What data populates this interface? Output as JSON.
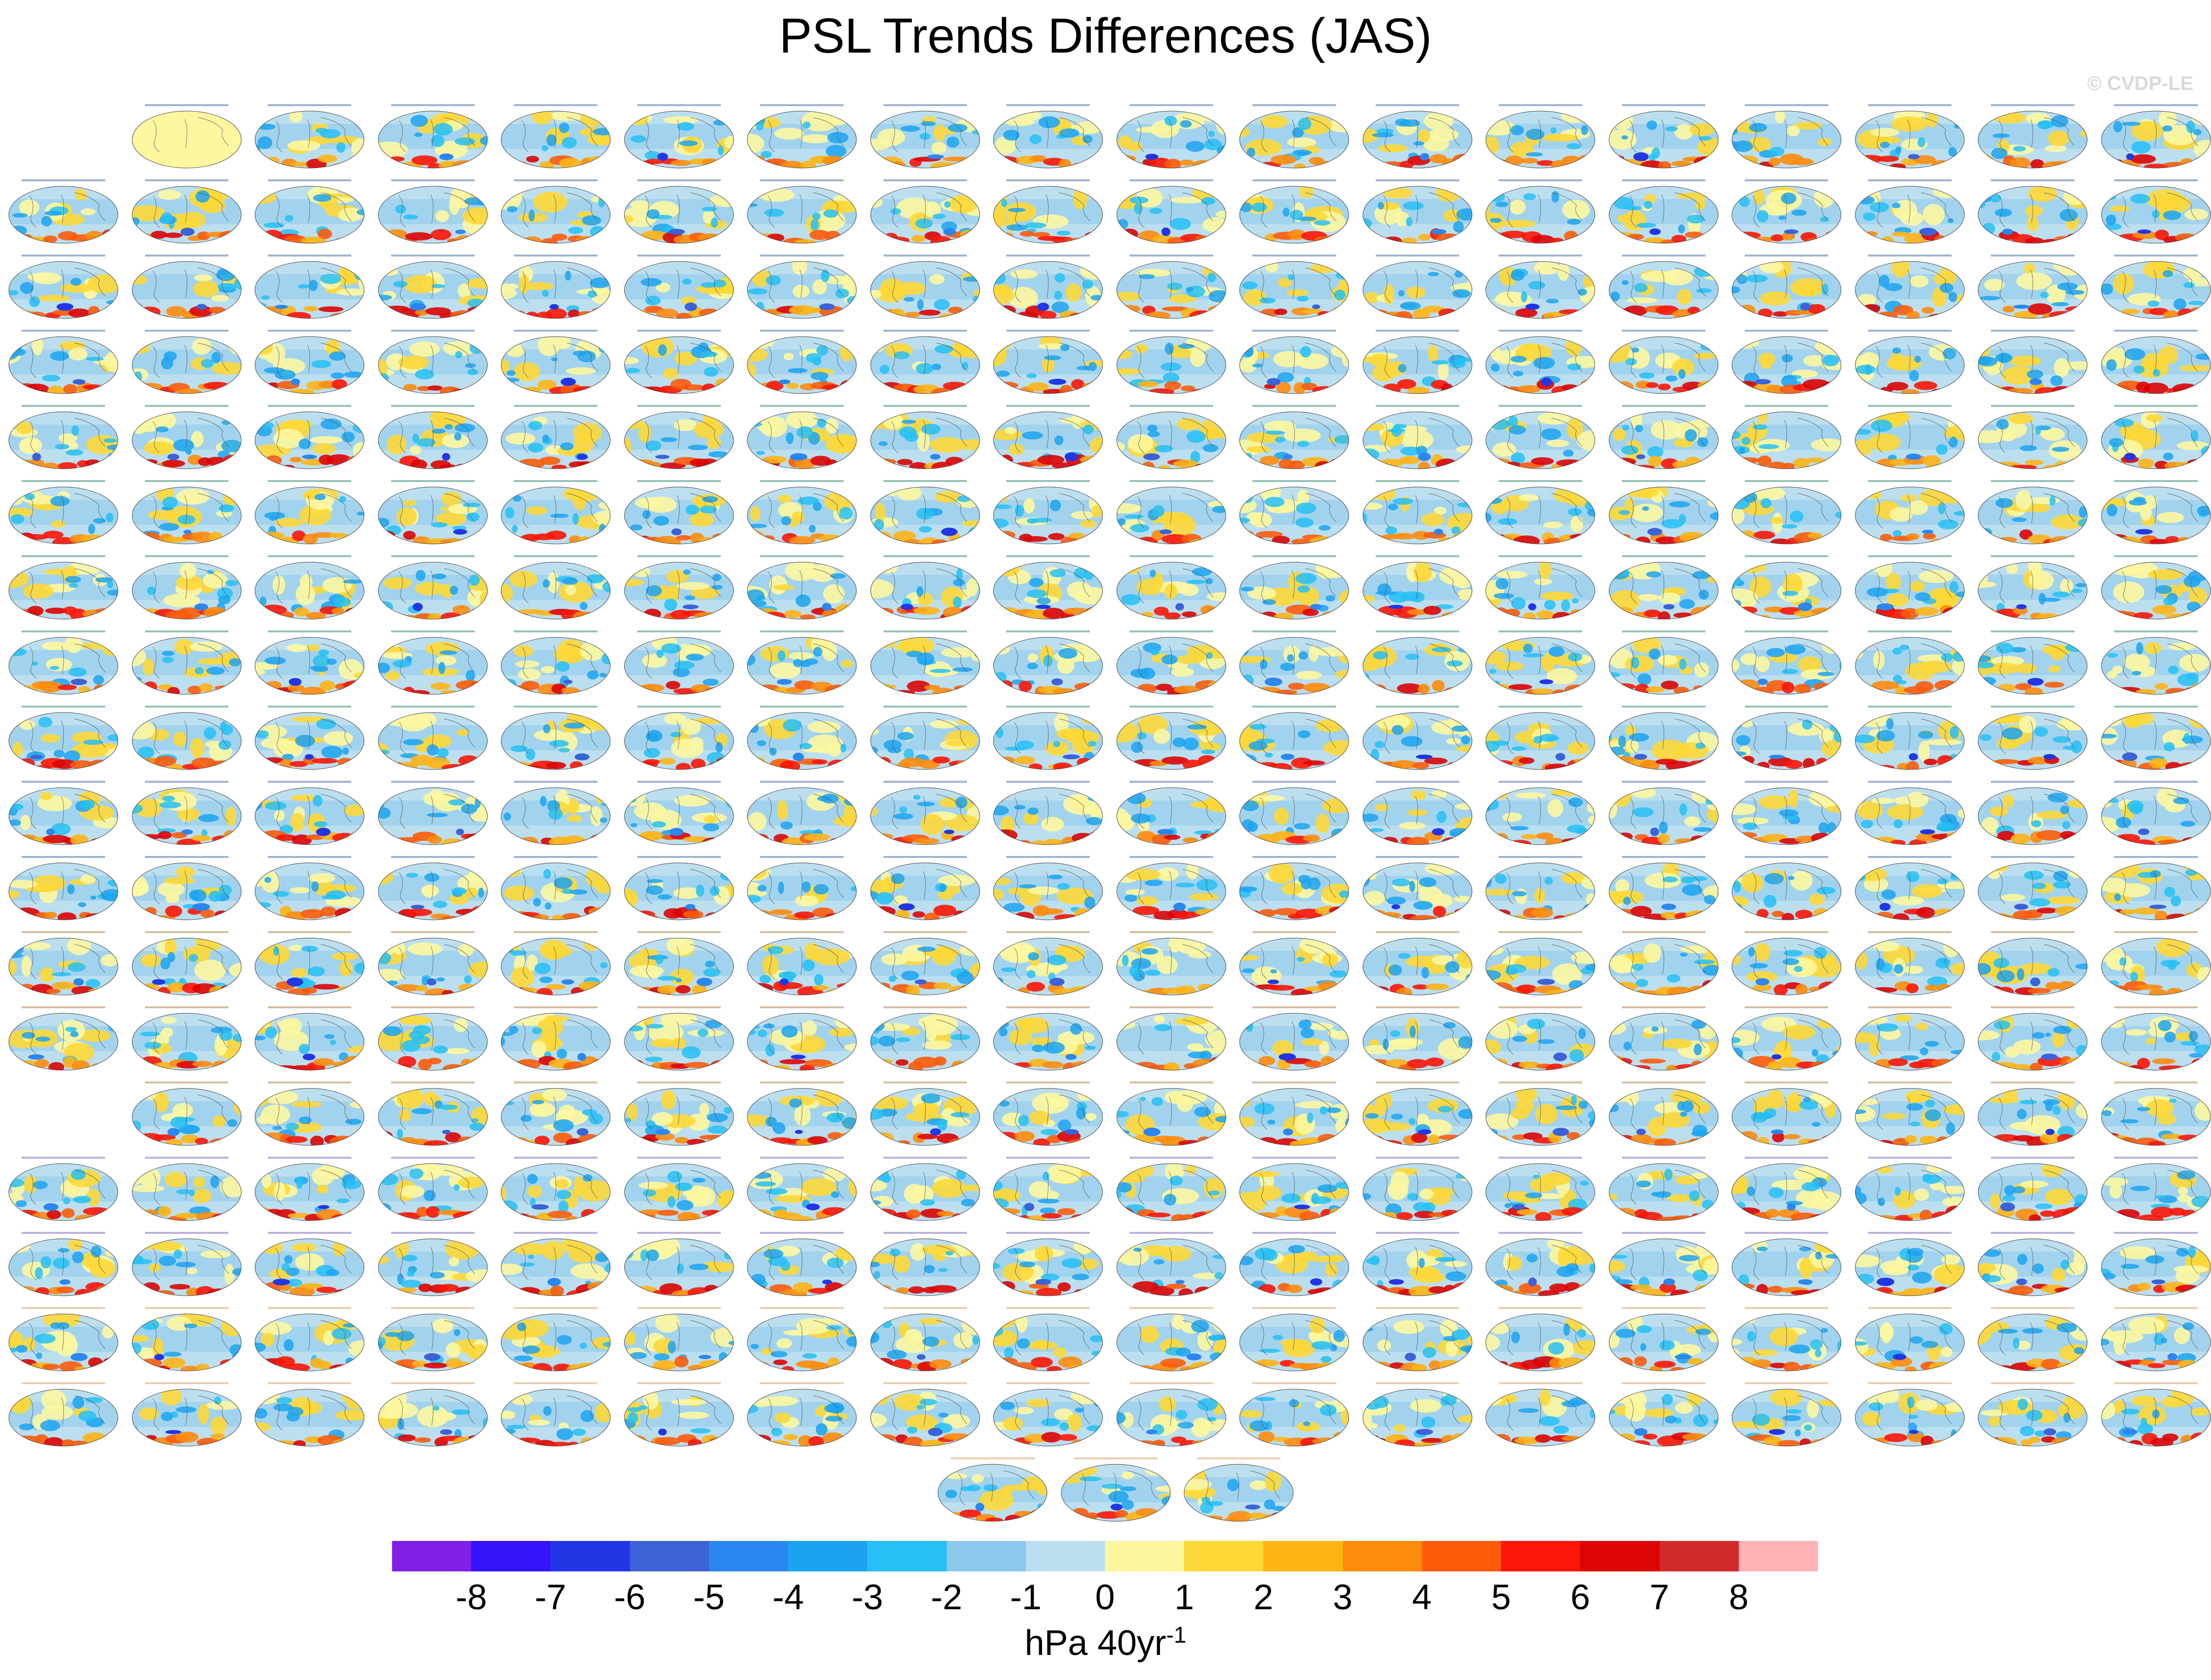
{
  "title": "PSL Trends Differences (JAS)",
  "watermark": "© CVDP-LE",
  "chart_data": {
    "type": "heatmap",
    "description_kind": "small-multiple global maps",
    "title": "PSL Trends Differences (JAS)",
    "colorbar": {
      "colors": [
        "#7f1fe8",
        "#3414f8",
        "#2236e6",
        "#3b62d6",
        "#2b86f0",
        "#1ca3f0",
        "#26c0f5",
        "#8cc8ec",
        "#bcdff0",
        "#fdf7a0",
        "#fed836",
        "#fdb415",
        "#fd8c0c",
        "#fc5c0a",
        "#fb1607",
        "#dc0404",
        "#d02a2a",
        "#feb4b4"
      ],
      "tick_labels": [
        "-8",
        "-7",
        "-6",
        "-5",
        "-4",
        "-3",
        "-2",
        "-1",
        "0",
        "1",
        "2",
        "3",
        "4",
        "5",
        "6",
        "7",
        "8"
      ],
      "units_base": "hPa 40yr",
      "units_exponent": "-1"
    },
    "panel_rows": [
      {
        "cols": [
          1,
          2,
          3,
          4,
          5,
          6,
          7,
          8,
          9,
          10,
          11,
          12,
          13,
          14,
          15,
          16,
          17
        ],
        "first_is_reference": true
      },
      {
        "cols": [
          0,
          1,
          2,
          3,
          4,
          5,
          6,
          7,
          8,
          9,
          10,
          11,
          12,
          13,
          14,
          15,
          16,
          17
        ]
      },
      {
        "cols": [
          0,
          1,
          2,
          3,
          4,
          5,
          6,
          7,
          8,
          9,
          10,
          11,
          12,
          13,
          14,
          15,
          16,
          17
        ]
      },
      {
        "cols": [
          0,
          1,
          2,
          3,
          4,
          5,
          6,
          7,
          8,
          9,
          10,
          11,
          12,
          13,
          14,
          15,
          16,
          17
        ]
      },
      {
        "cols": [
          0,
          1,
          2,
          3,
          4,
          5,
          6,
          7,
          8,
          9,
          10,
          11,
          12,
          13,
          14,
          15,
          16,
          17
        ]
      },
      {
        "cols": [
          0,
          1,
          2,
          3,
          4,
          5,
          6,
          7,
          8,
          9,
          10,
          11,
          12,
          13,
          14,
          15,
          16,
          17
        ]
      },
      {
        "cols": [
          0,
          1,
          2,
          3,
          4,
          5,
          6,
          7,
          8,
          9,
          10,
          11,
          12,
          13,
          14,
          15,
          16,
          17
        ]
      },
      {
        "cols": [
          0,
          1,
          2,
          3,
          4,
          5,
          6,
          7,
          8,
          9,
          10,
          11,
          12,
          13,
          14,
          15,
          16,
          17
        ]
      },
      {
        "cols": [
          0,
          1,
          2,
          3,
          4,
          5,
          6,
          7,
          8,
          9,
          10,
          11,
          12,
          13,
          14,
          15,
          16,
          17
        ]
      },
      {
        "cols": [
          0,
          1,
          2,
          3,
          4,
          5,
          6,
          7,
          8,
          9,
          10,
          11,
          12,
          13,
          14,
          15,
          16,
          17
        ]
      },
      {
        "cols": [
          0,
          1,
          2,
          3,
          4,
          5,
          6,
          7,
          8,
          9,
          10,
          11,
          12,
          13,
          14,
          15,
          16,
          17
        ]
      },
      {
        "cols": [
          0,
          1,
          2,
          3,
          4,
          5,
          6,
          7,
          8,
          9,
          10,
          11,
          12,
          13,
          14,
          15,
          16,
          17
        ]
      },
      {
        "cols": [
          0,
          1,
          2,
          3,
          4,
          5,
          6,
          7,
          8,
          9,
          10,
          11,
          12,
          13,
          14,
          15,
          16,
          17
        ]
      },
      {
        "cols": [
          1,
          2,
          3,
          4,
          5,
          6,
          7,
          8,
          9,
          10,
          11,
          12,
          13,
          14,
          15,
          16,
          17
        ]
      },
      {
        "cols": [
          0,
          1,
          2,
          3,
          4,
          5,
          6,
          7,
          8,
          9,
          10,
          11,
          12,
          13,
          14,
          15,
          16,
          17
        ]
      },
      {
        "cols": [
          0,
          1,
          2,
          3,
          4,
          5,
          6,
          7,
          8,
          9,
          10,
          11,
          12,
          13,
          14,
          15,
          16,
          17
        ]
      },
      {
        "cols": [
          0,
          1,
          2,
          3,
          4,
          5,
          6,
          7,
          8,
          9,
          10,
          11,
          12,
          13,
          14,
          15,
          16,
          17
        ]
      },
      {
        "cols": [
          0,
          1,
          2,
          3,
          4,
          5,
          6,
          7,
          8,
          9,
          10,
          11,
          12,
          13,
          14,
          15,
          16,
          17
        ]
      }
    ],
    "final_row_panel_count": 3,
    "panel_title_colors": [
      "#4f79a8",
      "#4f79a8",
      "#4f79a8",
      "#4f79a8",
      "#3f8f7f",
      "#3f8f7f",
      "#3f8f7f",
      "#3f8f7f",
      "#3f8f7f",
      "#4f79a8",
      "#4f79a8",
      "#b08a5a",
      "#b08a5a",
      "#b08a5a",
      "#8a6fc0",
      "#8a6fc0",
      "#d8a870",
      "#d8a870",
      "#d8a870"
    ]
  }
}
